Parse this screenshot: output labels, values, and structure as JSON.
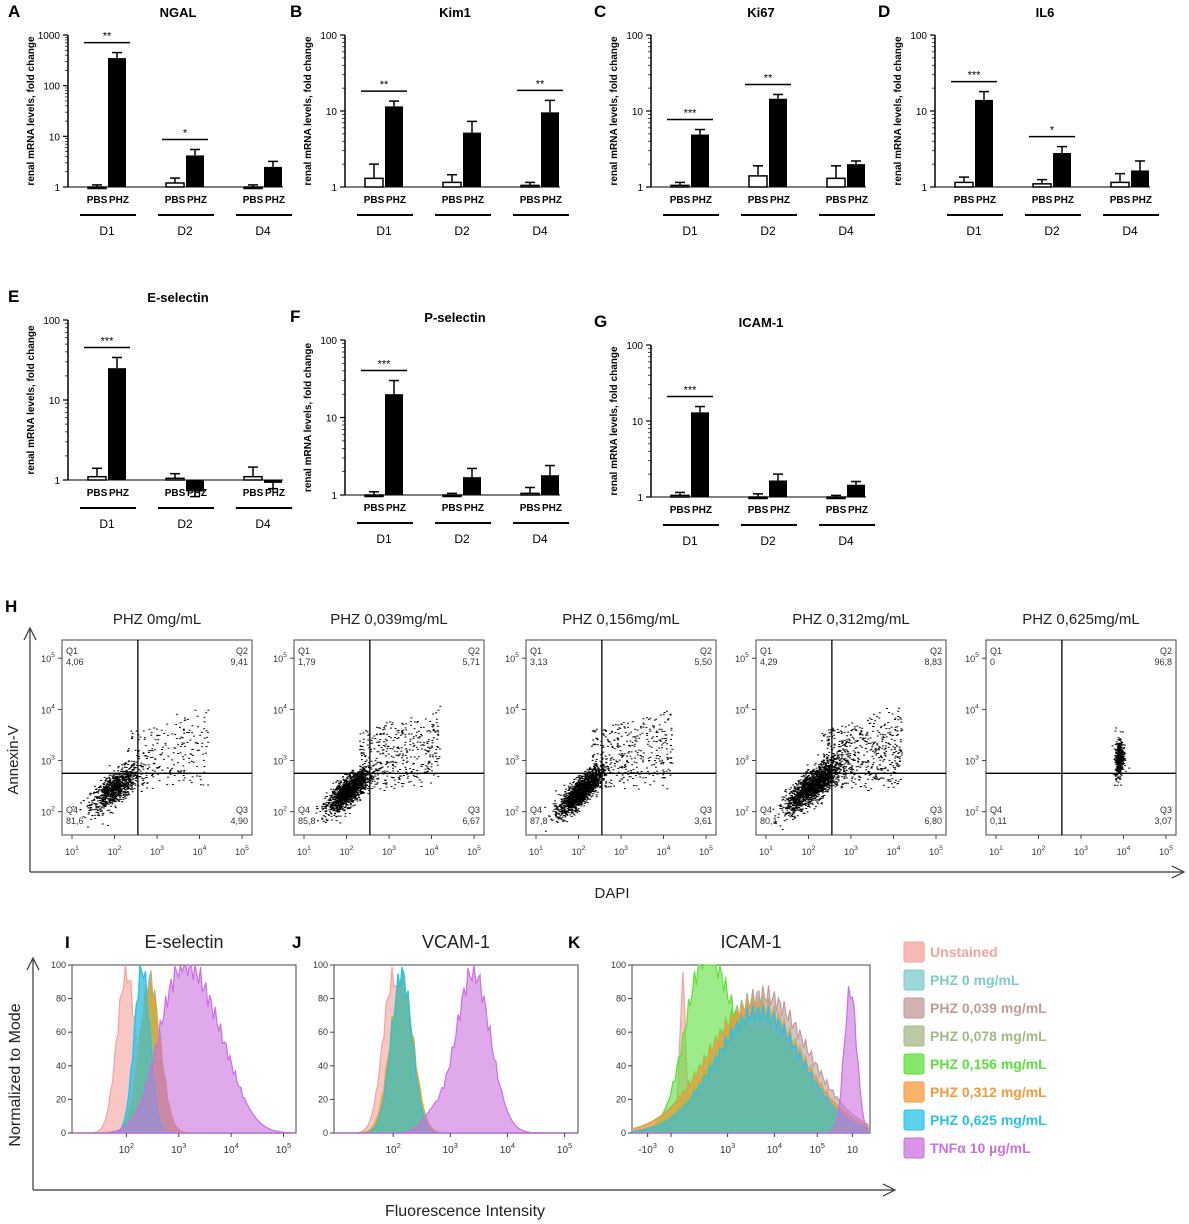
{
  "chart_data": [
    {
      "letter": "A",
      "title": "NGAL",
      "type": "bar",
      "scale": "log",
      "ylabel": "renal mRNA levels, fold change",
      "y_ticks": [
        "1",
        "10",
        "100",
        "1000"
      ],
      "series": [
        "PBS",
        "PHZ"
      ],
      "groups": [
        {
          "label": "D1",
          "pbs": 1.0,
          "pbs_err": 1.1,
          "phz": 350,
          "phz_err": 450,
          "sig": "**"
        },
        {
          "label": "D2",
          "pbs": 1.2,
          "pbs_err": 1.5,
          "phz": 4.2,
          "phz_err": 5.5,
          "sig": "*"
        },
        {
          "label": "D4",
          "pbs": 1.0,
          "pbs_err": 1.1,
          "phz": 2.5,
          "phz_err": 3.2,
          "sig": ""
        }
      ]
    },
    {
      "letter": "B",
      "title": "Kim1",
      "type": "bar",
      "scale": "log",
      "ylabel": "renal mRNA levels, fold change",
      "y_ticks": [
        "1",
        "10",
        "100"
      ],
      "series": [
        "PBS",
        "PHZ"
      ],
      "groups": [
        {
          "label": "D1",
          "pbs": 1.3,
          "pbs_err": 2.0,
          "phz": 11.5,
          "phz_err": 13.5,
          "sig": "**"
        },
        {
          "label": "D2",
          "pbs": 1.15,
          "pbs_err": 1.45,
          "phz": 5.2,
          "phz_err": 7.3,
          "sig": ""
        },
        {
          "label": "D4",
          "pbs": 1.05,
          "pbs_err": 1.15,
          "phz": 9.6,
          "phz_err": 13.8,
          "sig": "**"
        }
      ]
    },
    {
      "letter": "C",
      "title": "Ki67",
      "type": "bar",
      "scale": "log",
      "ylabel": "renal mRNA levels, fold change",
      "y_ticks": [
        "1",
        "10",
        "100"
      ],
      "series": [
        "PBS",
        "PHZ"
      ],
      "groups": [
        {
          "label": "D1",
          "pbs": 1.05,
          "pbs_err": 1.15,
          "phz": 4.9,
          "phz_err": 5.7,
          "sig": "***"
        },
        {
          "label": "D2",
          "pbs": 1.4,
          "pbs_err": 1.9,
          "phz": 14.5,
          "phz_err": 16.5,
          "sig": "**"
        },
        {
          "label": "D4",
          "pbs": 1.3,
          "pbs_err": 1.9,
          "phz": 2.0,
          "phz_err": 2.2,
          "sig": ""
        }
      ]
    },
    {
      "letter": "D",
      "title": "IL6",
      "type": "bar",
      "scale": "log",
      "ylabel": "renal mRNA levels, fold change",
      "y_ticks": [
        "1",
        "10",
        "100"
      ],
      "series": [
        "PBS",
        "PHZ"
      ],
      "groups": [
        {
          "label": "D1",
          "pbs": 1.15,
          "pbs_err": 1.35,
          "phz": 14,
          "phz_err": 18,
          "sig": "***"
        },
        {
          "label": "D2",
          "pbs": 1.1,
          "pbs_err": 1.25,
          "phz": 2.8,
          "phz_err": 3.4,
          "sig": "*"
        },
        {
          "label": "D4",
          "pbs": 1.15,
          "pbs_err": 1.5,
          "phz": 1.65,
          "phz_err": 2.2,
          "sig": ""
        }
      ]
    },
    {
      "letter": "E",
      "title": "E-selectin",
      "type": "bar",
      "scale": "log",
      "ylabel": "renal mRNA levels, fold change",
      "y_ticks": [
        "1",
        "10",
        "100"
      ],
      "series": [
        "PBS",
        "PHZ"
      ],
      "groups": [
        {
          "label": "D1",
          "pbs": 1.1,
          "pbs_err": 1.4,
          "phz": 25,
          "phz_err": 34,
          "sig": "***"
        },
        {
          "label": "D2",
          "pbs": 1.05,
          "pbs_err": 1.2,
          "phz": 0.72,
          "phz_err": 0.62,
          "sig": ""
        },
        {
          "label": "D4",
          "pbs": 1.1,
          "pbs_err": 1.45,
          "phz": 0.92,
          "phz_err": 0.78,
          "sig": ""
        }
      ]
    },
    {
      "letter": "F",
      "title": "P-selectin",
      "type": "bar",
      "scale": "log",
      "ylabel": "renal mRNA levels, fold change",
      "y_ticks": [
        "1",
        "10",
        "100"
      ],
      "series": [
        "PBS",
        "PHZ"
      ],
      "groups": [
        {
          "label": "D1",
          "pbs": 1.0,
          "pbs_err": 1.1,
          "phz": 20,
          "phz_err": 30,
          "sig": "***"
        },
        {
          "label": "D2",
          "pbs": 1.0,
          "pbs_err": 1.05,
          "phz": 1.7,
          "phz_err": 2.2,
          "sig": ""
        },
        {
          "label": "D4",
          "pbs": 1.05,
          "pbs_err": 1.25,
          "phz": 1.8,
          "phz_err": 2.4,
          "sig": ""
        }
      ]
    },
    {
      "letter": "G",
      "title": "ICAM-1",
      "type": "bar",
      "scale": "log",
      "ylabel": "renal mRNA levels, fold change",
      "y_ticks": [
        "1",
        "10",
        "100"
      ],
      "series": [
        "PBS",
        "PHZ"
      ],
      "groups": [
        {
          "label": "D1",
          "pbs": 1.05,
          "pbs_err": 1.15,
          "phz": 13,
          "phz_err": 15.5,
          "sig": "***"
        },
        {
          "label": "D2",
          "pbs": 1.0,
          "pbs_err": 1.1,
          "phz": 1.65,
          "phz_err": 2.0,
          "sig": ""
        },
        {
          "label": "D4",
          "pbs": 1.0,
          "pbs_err": 1.05,
          "phz": 1.45,
          "phz_err": 1.6,
          "sig": ""
        }
      ]
    },
    {
      "letter": "H",
      "type": "scatter",
      "xlabel": "DAPI",
      "ylabel": "Annexin-V",
      "x_ticks": [
        "10",
        "10",
        "10",
        "10",
        "10"
      ],
      "x_tick_exponents": [
        "1",
        "2",
        "3",
        "4",
        "5"
      ],
      "y_ticks": [
        "10",
        "10",
        "10",
        "10"
      ],
      "y_tick_exponents": [
        "2",
        "3",
        "4",
        "5"
      ],
      "quadrant_labels": [
        "Q1",
        "Q2",
        "Q3",
        "Q4"
      ],
      "panels": [
        {
          "title": "PHZ 0mg/mL",
          "q1": "4,06",
          "q2": "9,41",
          "q3": "4,90",
          "q4": "81,6"
        },
        {
          "title": "PHZ 0,039mg/mL",
          "q1": "1,79",
          "q2": "5,71",
          "q3": "6,67",
          "q4": "85,8"
        },
        {
          "title": "PHZ 0,156mg/mL",
          "q1": "3,13",
          "q2": "5,50",
          "q3": "3,61",
          "q4": "87,8"
        },
        {
          "title": "PHZ 0,312mg/mL",
          "q1": "4,29",
          "q2": "8,83",
          "q3": "6,80",
          "q4": "80,1"
        },
        {
          "title": "PHZ 0,625mg/mL",
          "q1": "0",
          "q2": "96,8",
          "q3": "3,07",
          "q4": "0,11"
        }
      ]
    },
    {
      "type": "area",
      "xlabel": "Fluorescence Intensity",
      "ylabel": "Normalized to Mode",
      "y_ticks": [
        "0",
        "20",
        "40",
        "60",
        "80",
        "100"
      ],
      "x_ticks": [
        "10",
        "10",
        "10",
        "10"
      ],
      "x_tick_exponents": [
        "2",
        "3",
        "4",
        "5"
      ],
      "k_x_ticks": [
        "-10",
        "0",
        "10",
        "10",
        "10",
        "10"
      ],
      "k_x_tick_exponents": [
        "3",
        "",
        "3",
        "4",
        "5",
        ""
      ],
      "legend": [
        {
          "label": "Unstained",
          "color": "#f4a29d"
        },
        {
          "label": "PHZ 0 mg/mL",
          "color": "#7ecaca"
        },
        {
          "label": "PHZ 0,039 mg/mL",
          "color": "#c39a9a"
        },
        {
          "label": "PHZ 0,078 mg/mL",
          "color": "#a4b887"
        },
        {
          "label": "PHZ 0,156 mg/mL",
          "color": "#5ce03a"
        },
        {
          "label": "PHZ 0,312 mg/mL",
          "color": "#f59a3c"
        },
        {
          "label": "PHZ 0,625 mg/mL",
          "color": "#28c2e8"
        },
        {
          "label": "TNFα 10 µg/mL",
          "color": "#cc6fe0"
        }
      ],
      "panels": [
        {
          "letter": "I",
          "title": "E-selectin"
        },
        {
          "letter": "J",
          "title": "VCAM-1"
        },
        {
          "letter": "K",
          "title": "ICAM-1"
        }
      ]
    }
  ]
}
